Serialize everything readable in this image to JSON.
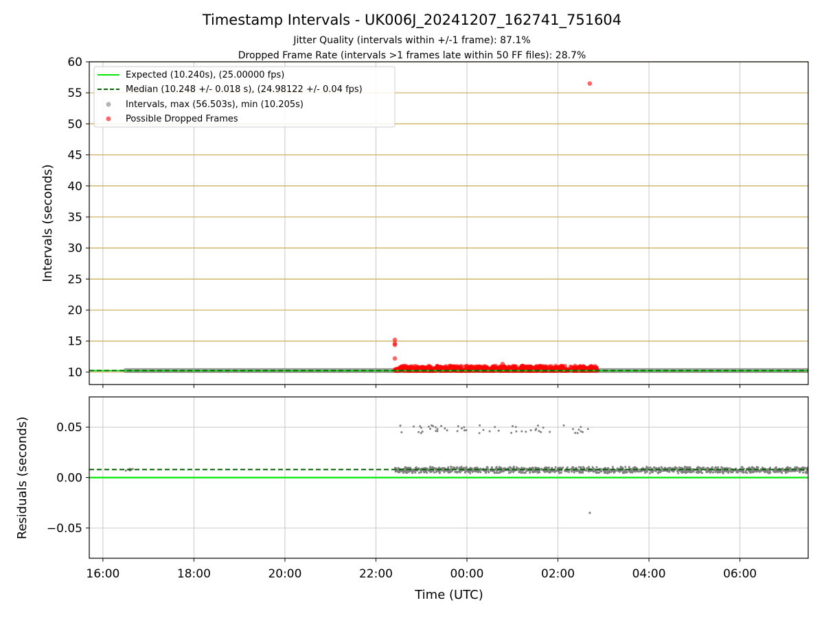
{
  "figure": {
    "title": "Timestamp Intervals - UK006J_20241207_162741_751604",
    "subtitle_1": "Jitter Quality (intervals within +/-1 frame): 87.1%",
    "subtitle_2": "Dropped Frame Rate (intervals >1 frames late within 50 FF files): 28.7%"
  },
  "colors": {
    "expected": "#00e600",
    "median": "#006400",
    "intervals": "#808080",
    "dropped": "#ff0000",
    "interval_grid": "#c8aa50",
    "grid": "#c8c8c8"
  },
  "chart_data": [
    {
      "type": "scatter",
      "title": "",
      "xlabel": "",
      "ylabel": "Intervals (seconds)",
      "ylim": [
        8,
        60
      ],
      "y_ticks": [
        "10",
        "15",
        "20",
        "25",
        "30",
        "35",
        "40",
        "45",
        "50",
        "55",
        "60"
      ],
      "xlim_hours": [
        15.7,
        31.5
      ],
      "grid": true,
      "horizontal_gridlines_color": "golden",
      "legend_placement": "upper-left",
      "legend": [
        "Expected (10.240s), (25.00000 fps)",
        "Median (10.248 +/- 0.018 s), (24.98122 +/- 0.04 fps)",
        "Intervals, max (56.503s), min (10.205s)",
        "Possible Dropped Frames"
      ],
      "expected_interval": 10.24,
      "median_interval": 10.248,
      "intervals_max": 56.503,
      "intervals_min": 10.205,
      "intervals_series": [
        {
          "from": "16:30",
          "to": "22:25",
          "approx_value": 10.248
        },
        {
          "from": "22:25",
          "to": "02:50",
          "approx_value": 10.25
        },
        {
          "from": "02:50",
          "to": "07:30",
          "approx_value": 10.25
        }
      ],
      "dropped_frames": {
        "dense_range": {
          "from": "22:25",
          "to": "02:52",
          "min": 10.25,
          "max": 11.0
        },
        "outliers": [
          {
            "x": "22:25",
            "y": 15.2
          },
          {
            "x": "22:25",
            "y": 14.6
          },
          {
            "x": "22:25",
            "y": 14.4
          },
          {
            "x": "22:25",
            "y": 12.2
          },
          {
            "x": "00:47",
            "y": 11.3
          },
          {
            "x": "02:42",
            "y": 56.5
          }
        ]
      }
    },
    {
      "type": "scatter",
      "title": "",
      "xlabel": "Time (UTC)",
      "ylabel": "Residuals (seconds)",
      "ylim": [
        -0.08,
        0.08
      ],
      "y_ticks": [
        "−0.05",
        "0.00",
        "0.05"
      ],
      "x_ticks": [
        "16:00",
        "18:00",
        "20:00",
        "22:00",
        "00:00",
        "02:00",
        "04:00",
        "06:00"
      ],
      "grid": true,
      "expected_residual": 0.0,
      "median_residual": 0.008,
      "residual_band": {
        "from": "22:25",
        "to": "07:30",
        "min": 0.004,
        "max": 0.011
      },
      "residual_start_cluster": {
        "from": "16:30",
        "to": "16:40",
        "value": 0.0078
      },
      "residual_upper_cluster": {
        "from": "22:30",
        "to": "02:42",
        "min": 0.044,
        "max": 0.052
      },
      "residual_outlier": {
        "x": "02:42",
        "y": -0.035
      }
    }
  ]
}
